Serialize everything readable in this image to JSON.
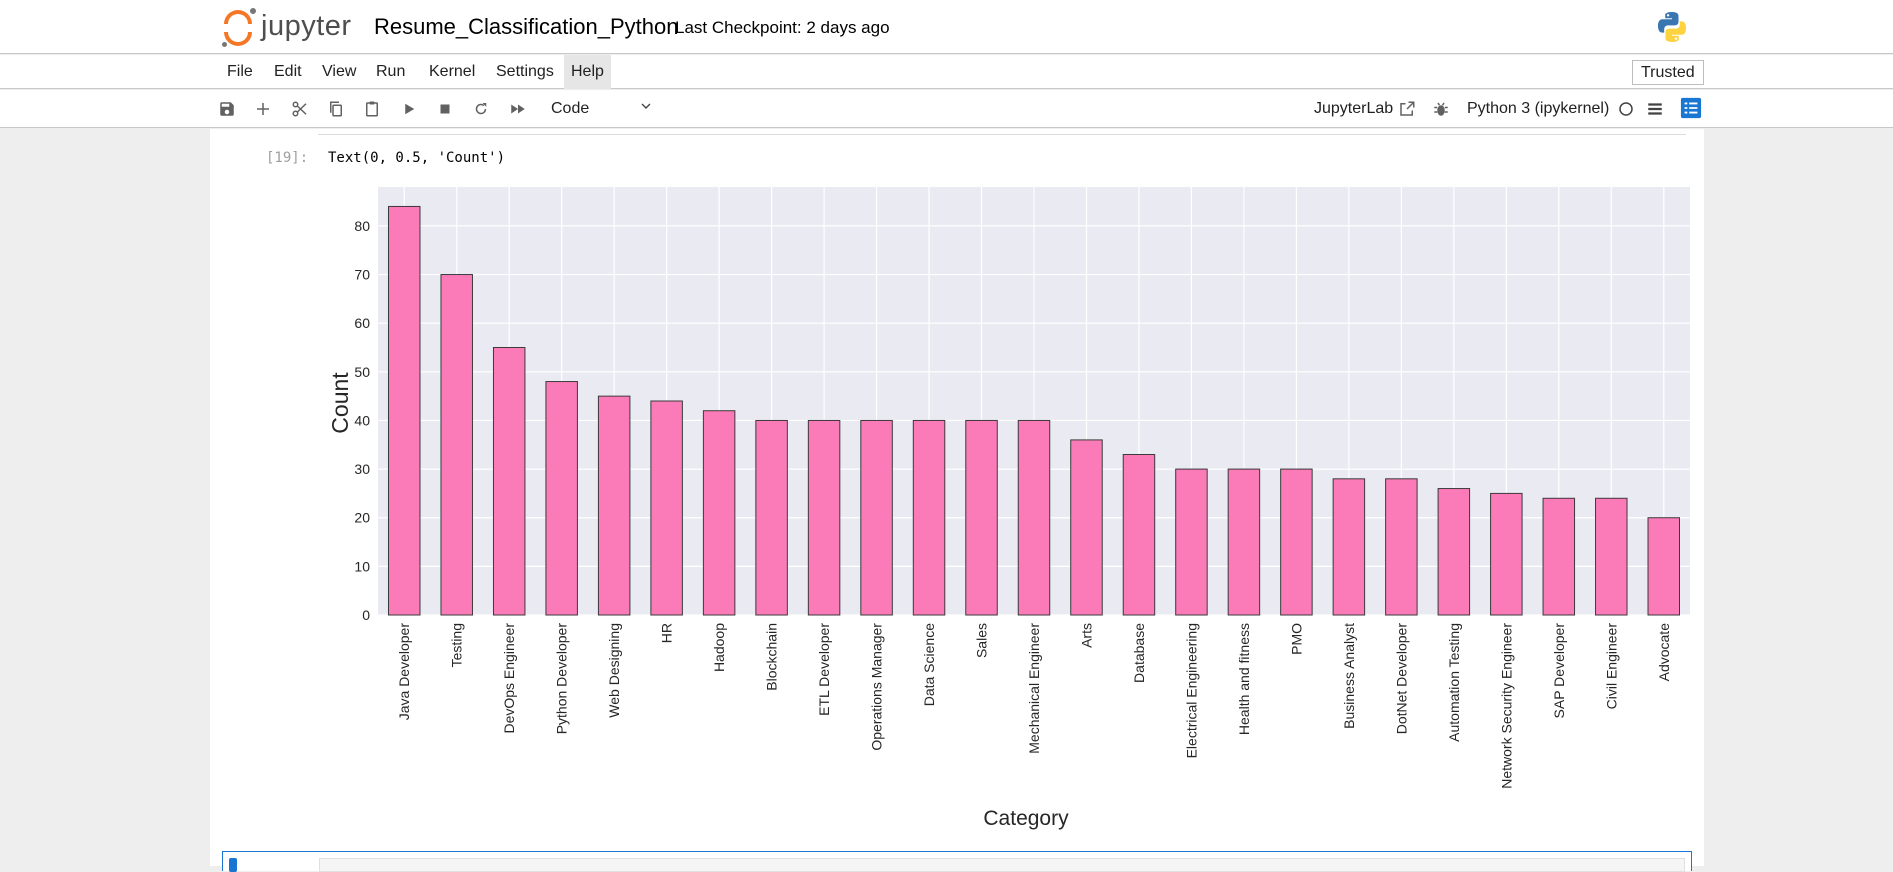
{
  "header": {
    "logo_text": "jupyter",
    "notebook_title": "Resume_Classification_Python",
    "checkpoint": "Last Checkpoint: 2 days ago"
  },
  "menu": {
    "items": [
      "File",
      "Edit",
      "View",
      "Run",
      "Kernel",
      "Settings",
      "Help"
    ],
    "active": "Help",
    "trusted": "Trusted"
  },
  "toolbar": {
    "cell_type": "Code",
    "jupyterlab_link": "JupyterLab",
    "kernel": "Python 3 (ipykernel)",
    "accent_color": "#1976d2"
  },
  "cell": {
    "prompt": "[19]:",
    "output_text": "Text(0, 0.5, 'Count')"
  },
  "chart_data": {
    "type": "bar",
    "xlabel": "Category",
    "ylabel": "Count",
    "ylim": [
      0,
      88
    ],
    "yticks": [
      0,
      10,
      20,
      30,
      40,
      50,
      60,
      70,
      80
    ],
    "grid": true,
    "bar_color": "#fb7ab8",
    "background_color": "#eaeaf2",
    "categories": [
      "Java Developer",
      "Testing",
      "DevOps Engineer",
      "Python Developer",
      "Web Designing",
      "HR",
      "Hadoop",
      "Blockchain",
      "ETL Developer",
      "Operations Manager",
      "Data Science",
      "Sales",
      "Mechanical Engineer",
      "Arts",
      "Database",
      "Electrical Engineering",
      "Health and fitness",
      "PMO",
      "Business Analyst",
      "DotNet Developer",
      "Automation Testing",
      "Network Security Engineer",
      "SAP Developer",
      "Civil Engineer",
      "Advocate"
    ],
    "values": [
      84,
      70,
      55,
      48,
      45,
      44,
      42,
      40,
      40,
      40,
      40,
      40,
      40,
      36,
      33,
      30,
      30,
      30,
      28,
      28,
      26,
      25,
      24,
      24,
      20
    ]
  }
}
